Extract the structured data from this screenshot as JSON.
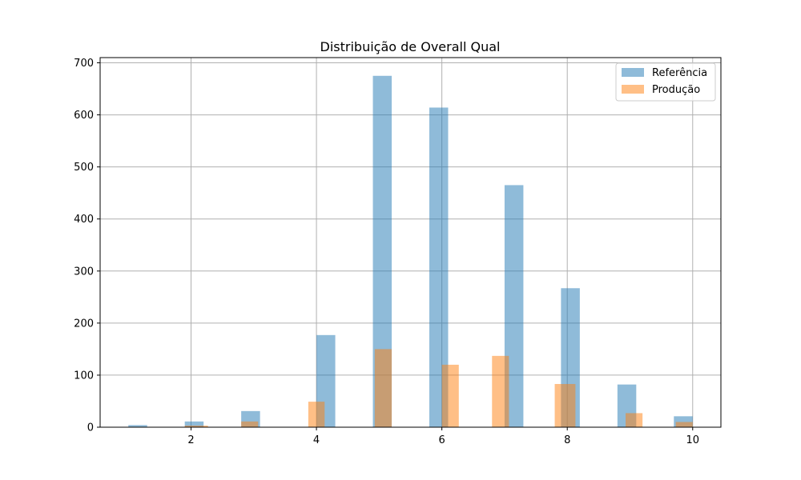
{
  "chart_data": {
    "type": "bar",
    "title": "Distribuição de Overall Qual",
    "xlabel": "",
    "ylabel": "",
    "xlim": [
      0.55,
      10.45
    ],
    "ylim": [
      0,
      710
    ],
    "x_ticks": [
      2,
      4,
      6,
      8,
      10
    ],
    "y_ticks": [
      0,
      100,
      200,
      300,
      400,
      500,
      600,
      700
    ],
    "grid": true,
    "legend_position": "top-right",
    "series": [
      {
        "name": "Referência",
        "color": "#1f77b4",
        "opacity": 0.5,
        "bars": [
          {
            "x0": 1.0,
            "x1": 1.3,
            "value": 4
          },
          {
            "x0": 1.9,
            "x1": 2.2,
            "value": 11
          },
          {
            "x0": 2.8,
            "x1": 3.1,
            "value": 31
          },
          {
            "x0": 4.0,
            "x1": 4.3,
            "value": 177
          },
          {
            "x0": 4.9,
            "x1": 5.2,
            "value": 675
          },
          {
            "x0": 5.8,
            "x1": 6.1,
            "value": 614
          },
          {
            "x0": 7.0,
            "x1": 7.3,
            "value": 465
          },
          {
            "x0": 7.9,
            "x1": 8.2,
            "value": 267
          },
          {
            "x0": 8.8,
            "x1": 9.1,
            "value": 82
          },
          {
            "x0": 9.7,
            "x1": 10.0,
            "value": 21
          }
        ]
      },
      {
        "name": "Produção",
        "color": "#ff7f0e",
        "opacity": 0.5,
        "bars": [
          {
            "x0": 1.9,
            "x1": 2.27,
            "value": 3
          },
          {
            "x0": 2.8,
            "x1": 3.07,
            "value": 11
          },
          {
            "x0": 3.87,
            "x1": 4.13,
            "value": 49
          },
          {
            "x0": 4.93,
            "x1": 5.2,
            "value": 150
          },
          {
            "x0": 6.0,
            "x1": 6.27,
            "value": 120
          },
          {
            "x0": 6.8,
            "x1": 7.07,
            "value": 137
          },
          {
            "x0": 7.8,
            "x1": 8.13,
            "value": 83
          },
          {
            "x0": 8.93,
            "x1": 9.2,
            "value": 27
          },
          {
            "x0": 9.73,
            "x1": 10.0,
            "value": 10
          }
        ]
      }
    ]
  }
}
